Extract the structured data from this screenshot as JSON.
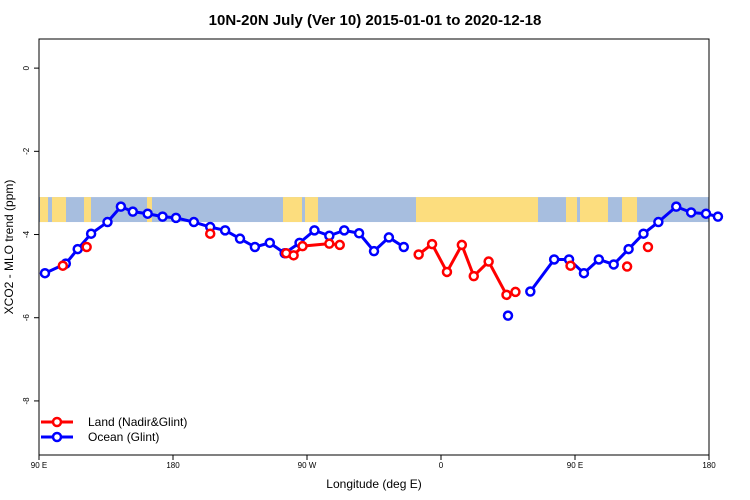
{
  "chart_data": {
    "type": "line",
    "title": "10N-20N July (Ver 10)   2015-01-01 to 2020-12-18",
    "xlabel": "Longitude (deg E)",
    "ylabel": "XCO2 - MLO trend (ppm)",
    "xlim": [
      90,
      540
    ],
    "ylim": [
      -9.3,
      0.7
    ],
    "x_ticks": [
      {
        "value": 90,
        "label": "90 E"
      },
      {
        "value": 180,
        "label": "180"
      },
      {
        "value": 270,
        "label": "90 W"
      },
      {
        "value": 360,
        "label": "0"
      },
      {
        "value": 450,
        "label": "90 E"
      },
      {
        "value": 540,
        "label": "180"
      }
    ],
    "y_ticks": [
      {
        "value": 0,
        "label": "0"
      },
      {
        "value": -2,
        "label": "-2"
      },
      {
        "value": -4,
        "label": "-4"
      },
      {
        "value": -6,
        "label": "-6"
      },
      {
        "value": -8,
        "label": "-8"
      }
    ],
    "legend_position": "bottom-left",
    "series": [
      {
        "name": "Land (Nadir&Glint)",
        "color": "#ff0000",
        "segments": [
          [
            [
              106,
              -4.75
            ]
          ],
          [
            [
              122,
              -4.3
            ]
          ],
          [
            [
              205,
              -3.98
            ]
          ],
          [
            [
              256,
              -4.45
            ],
            [
              261,
              -4.5
            ],
            [
              267,
              -4.28
            ],
            [
              285,
              -4.22
            ],
            [
              292,
              -4.25
            ]
          ],
          [
            [
              345,
              -4.48
            ],
            [
              354,
              -4.23
            ],
            [
              364,
              -4.9
            ],
            [
              374,
              -4.25
            ],
            [
              382,
              -5.0
            ],
            [
              392,
              -4.65
            ],
            [
              404,
              -5.45
            ],
            [
              410,
              -5.38
            ]
          ],
          [
            [
              447,
              -4.75
            ]
          ],
          [
            [
              485,
              -4.77
            ]
          ],
          [
            [
              499,
              -4.3
            ]
          ]
        ]
      },
      {
        "name": "Ocean (Glint)",
        "color": "#0000ff",
        "segments": [
          [
            [
              94,
              -4.93
            ],
            [
              108,
              -4.7
            ],
            [
              116,
              -4.35
            ],
            [
              125,
              -3.98
            ],
            [
              136,
              -3.7
            ],
            [
              145,
              -3.33
            ],
            [
              153,
              -3.45
            ],
            [
              163,
              -3.5
            ],
            [
              173,
              -3.57
            ],
            [
              182,
              -3.6
            ],
            [
              194,
              -3.7
            ],
            [
              205,
              -3.82
            ],
            [
              215,
              -3.9
            ],
            [
              225,
              -4.1
            ],
            [
              235,
              -4.3
            ],
            [
              245,
              -4.2
            ],
            [
              255,
              -4.45
            ],
            [
              265,
              -4.2
            ],
            [
              275,
              -3.9
            ],
            [
              285,
              -4.03
            ],
            [
              295,
              -3.9
            ],
            [
              305,
              -3.97
            ],
            [
              315,
              -4.4
            ],
            [
              325,
              -4.07
            ],
            [
              335,
              -4.3
            ]
          ],
          [
            [
              405,
              -5.95
            ]
          ],
          [
            [
              420,
              -5.37
            ],
            [
              436,
              -4.6
            ],
            [
              446,
              -4.6
            ],
            [
              456,
              -4.93
            ],
            [
              466,
              -4.6
            ],
            [
              476,
              -4.72
            ],
            [
              486,
              -4.35
            ],
            [
              496,
              -3.98
            ],
            [
              506,
              -3.7
            ],
            [
              518,
              -3.33
            ],
            [
              528,
              -3.47
            ],
            [
              538,
              -3.5
            ],
            [
              546,
              -3.57
            ]
          ]
        ]
      }
    ],
    "background_band": {
      "y_top": -3.1,
      "y_bottom": -3.7,
      "ocean_color": "#a7bedf",
      "land_color": "#fcdd7e"
    }
  }
}
